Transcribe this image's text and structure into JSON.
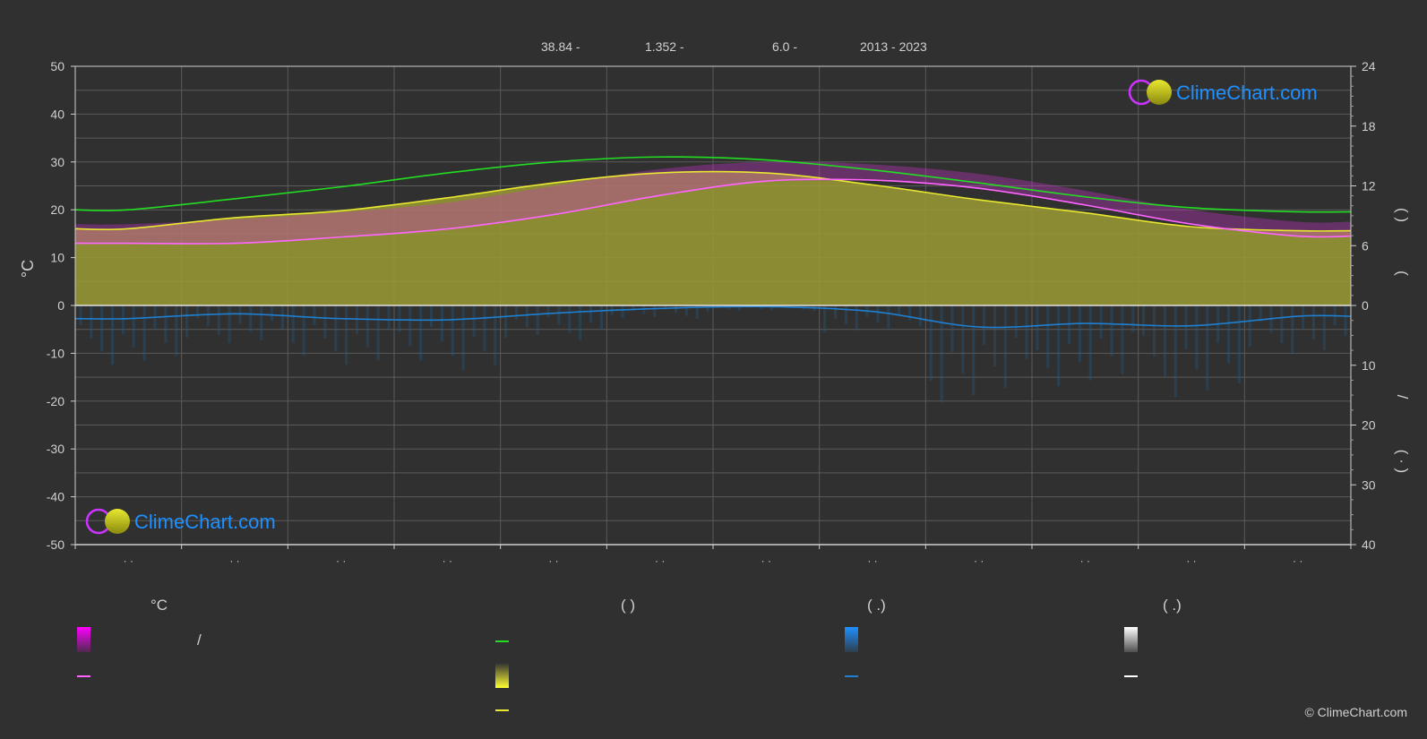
{
  "header": {
    "latitude": "38.84 -",
    "longitude": "1.352 -",
    "elevation": "6.0 -",
    "years": "2013 - 2023"
  },
  "logo": {
    "text": "ClimeChart.com"
  },
  "copyright": "© ClimeChart.com",
  "legend": {
    "col1_title": "°C",
    "col1_slash": "/",
    "col2_title": "(          )",
    "col3_title": "(    .)",
    "col4_title": "(    .)"
  },
  "colors": {
    "background": "#303030",
    "daylight": "#22dd22",
    "sunshine": "#e8e830",
    "sunshine_fill": "#9b9b35",
    "temp_band": "#cc33cc",
    "temp_mean": "#ff66ff",
    "precip": "#1f7fd0",
    "logo_blue": "#1e90ff"
  },
  "chart_data": {
    "type": "line",
    "left_axis": {
      "label": "°C",
      "ticks": [
        50,
        40,
        30,
        20,
        10,
        0,
        -10,
        -20,
        -30,
        -40,
        -50
      ],
      "ylim": [
        -50,
        50
      ]
    },
    "right_axis_top": {
      "ticks": [
        24,
        18,
        12,
        6,
        0
      ],
      "ylim": [
        0,
        24
      ]
    },
    "right_axis_bottom": {
      "ticks": [
        0,
        10,
        20,
        30,
        40
      ],
      "ylim": [
        0,
        40
      ]
    },
    "right_axis_labels": [
      "(   )",
      "(",
      "/",
      "(  ·  )"
    ],
    "x_tick_labels": [
      "· ·",
      "· ·",
      "· ·",
      "· ·",
      "· ·",
      "· ·",
      "· ·",
      "· ·",
      "· ·",
      "· ·",
      "· ·",
      "· ·"
    ],
    "months": 12,
    "grid": true,
    "series": [
      {
        "key": "daylight",
        "values": [
          9.6,
          10.7,
          11.9,
          13.3,
          14.4,
          14.9,
          14.6,
          13.6,
          12.3,
          10.9,
          9.8,
          9.4
        ]
      },
      {
        "key": "sunshine",
        "values": [
          7.7,
          8.8,
          9.5,
          10.8,
          12.3,
          13.3,
          13.3,
          12.1,
          10.6,
          9.3,
          7.9,
          7.5
        ]
      },
      {
        "key": "temp_mean",
        "values": [
          13.0,
          13.0,
          14.3,
          16.0,
          19.0,
          23.0,
          26.0,
          26.2,
          24.5,
          21.0,
          17.0,
          14.5
        ]
      },
      {
        "key": "temp_band_top",
        "values": [
          17.0,
          18.0,
          19.5,
          21.5,
          25.0,
          28.5,
          30.0,
          29.5,
          27.5,
          24.0,
          20.0,
          17.5
        ]
      },
      {
        "key": "precipitation_mm",
        "values": [
          2.2,
          1.4,
          2.2,
          2.4,
          1.3,
          0.5,
          0.2,
          1.0,
          3.6,
          3.0,
          3.4,
          1.8
        ]
      }
    ]
  }
}
